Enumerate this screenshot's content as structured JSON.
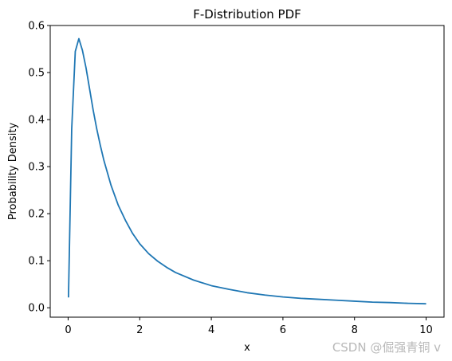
{
  "chart_data": {
    "type": "line",
    "title": "F-Distribution PDF",
    "xlabel": "x",
    "ylabel": "Probability Density",
    "xlim": [
      -0.5,
      10.5
    ],
    "ylim": [
      -0.02,
      0.6
    ],
    "xticks": [
      0,
      2,
      4,
      6,
      8,
      10
    ],
    "yticks": [
      0.0,
      0.1,
      0.2,
      0.3,
      0.4,
      0.5,
      0.6
    ],
    "xtick_labels": [
      "0",
      "2",
      "4",
      "6",
      "8",
      "10"
    ],
    "ytick_labels": [
      "0.0",
      "0.1",
      "0.2",
      "0.3",
      "0.4",
      "0.5",
      "0.6"
    ],
    "grid": false,
    "series": [
      {
        "color": "#1f77b4",
        "x": [
          0.01,
          0.1,
          0.2,
          0.3,
          0.4,
          0.5,
          0.6,
          0.7,
          0.8,
          0.9,
          1.0,
          1.2,
          1.4,
          1.6,
          1.8,
          2.0,
          2.25,
          2.5,
          2.75,
          3.0,
          3.5,
          4.0,
          4.5,
          5.0,
          5.5,
          6.0,
          6.5,
          7.0,
          7.5,
          8.0,
          8.5,
          9.0,
          9.5,
          10.0
        ],
        "y": [
          0.022,
          0.38,
          0.545,
          0.572,
          0.547,
          0.51,
          0.465,
          0.42,
          0.38,
          0.345,
          0.313,
          0.26,
          0.218,
          0.186,
          0.158,
          0.136,
          0.115,
          0.099,
          0.086,
          0.075,
          0.059,
          0.047,
          0.039,
          0.032,
          0.027,
          0.023,
          0.02,
          0.018,
          0.016,
          0.014,
          0.012,
          0.011,
          0.0095,
          0.0085
        ]
      }
    ]
  },
  "watermark": "CSDN @倔强青铜 v"
}
